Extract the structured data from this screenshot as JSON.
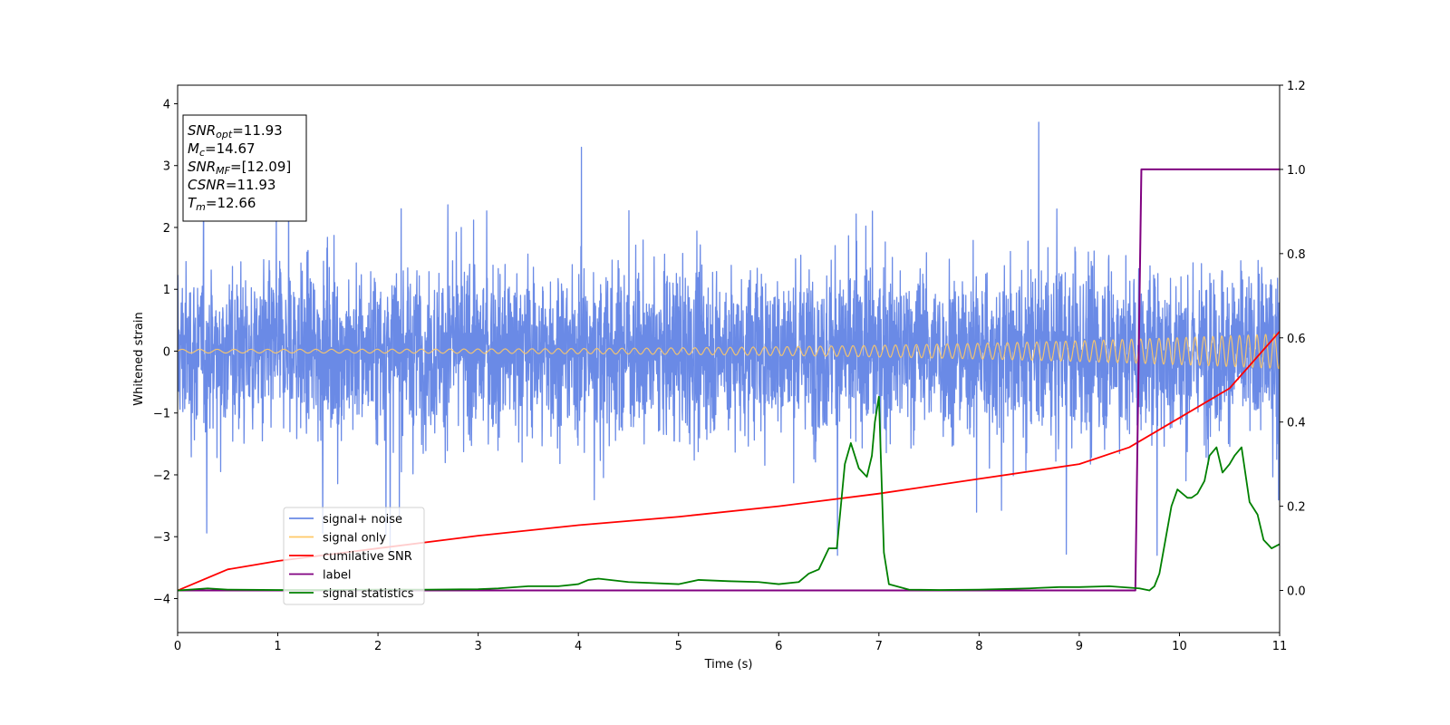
{
  "chart_data": {
    "type": "line",
    "xlabel": "Time (s)",
    "ylabel": "Whitened strain",
    "xlim": [
      0,
      11
    ],
    "ylim_left": [
      -4.55,
      4.3
    ],
    "ylim_right": [
      -0.1,
      1.2
    ],
    "x_ticks": [
      "0",
      "1",
      "2",
      "3",
      "4",
      "5",
      "6",
      "7",
      "8",
      "9",
      "10",
      "11"
    ],
    "y_left_ticks": [
      "−4",
      "−3",
      "−2",
      "−1",
      "0",
      "1",
      "2",
      "3",
      "4"
    ],
    "y_right_ticks": [
      "0.0",
      "0.2",
      "0.4",
      "0.6",
      "0.8",
      "1.0",
      "1.2"
    ],
    "grid": false,
    "legend_position": "lower-left",
    "info_box": {
      "lines": [
        {
          "sym": "SNR",
          "sub": "opt",
          "value": "=11.93"
        },
        {
          "sym": "M",
          "sub": "c",
          "value": "=14.67"
        },
        {
          "sym": "SNR",
          "sub": "MF",
          "value": "=[12.09]"
        },
        {
          "sym": "CSNR",
          "sub": "",
          "value": "=11.93"
        },
        {
          "sym": "T",
          "sub": "m",
          "value": "=12.66"
        }
      ]
    },
    "series": [
      {
        "name": "signal+ noise",
        "color": "#6a8ae6",
        "axis": "left",
        "kind": "noise",
        "amplitude_envelope": [
          -3.3,
          3.7
        ]
      },
      {
        "name": "signal only",
        "color": "#ffc966",
        "axis": "left",
        "kind": "chirp",
        "amplitude_start": 0.03,
        "amplitude_end": 0.28
      },
      {
        "name": "cumilative SNR",
        "color": "#ff0000",
        "axis": "right",
        "x": [
          0,
          0.5,
          1,
          2,
          3,
          4,
          5,
          6,
          7,
          8,
          9,
          9.5,
          10,
          10.5,
          11
        ],
        "y": [
          0.0,
          0.05,
          0.07,
          0.1,
          0.13,
          0.155,
          0.175,
          0.2,
          0.23,
          0.265,
          0.3,
          0.34,
          0.41,
          0.48,
          0.615
        ]
      },
      {
        "name": "label",
        "color": "#800080",
        "axis": "right",
        "x": [
          0,
          9.56,
          9.62,
          11
        ],
        "y": [
          0,
          0,
          1,
          1
        ]
      },
      {
        "name": "signal statistics",
        "color": "#008000",
        "axis": "right",
        "x": [
          0,
          0.3,
          0.5,
          1,
          1.5,
          2,
          2.5,
          3,
          3.2,
          3.5,
          3.8,
          4,
          4.1,
          4.2,
          4.5,
          5,
          5.2,
          5.5,
          5.8,
          6,
          6.2,
          6.3,
          6.4,
          6.5,
          6.58,
          6.66,
          6.72,
          6.8,
          6.88,
          6.93,
          6.96,
          7.0,
          7.05,
          7.1,
          7.3,
          7.6,
          8,
          8.5,
          8.8,
          9,
          9.3,
          9.6,
          9.7,
          9.75,
          9.8,
          9.86,
          9.92,
          9.98,
          10.03,
          10.08,
          10.12,
          10.18,
          10.25,
          10.3,
          10.37,
          10.43,
          10.5,
          10.55,
          10.62,
          10.7,
          10.78,
          10.84,
          10.92,
          11
        ],
        "y": [
          0.0,
          0.005,
          0.002,
          0.001,
          0.001,
          0.002,
          0.002,
          0.003,
          0.005,
          0.01,
          0.01,
          0.015,
          0.025,
          0.028,
          0.02,
          0.015,
          0.025,
          0.022,
          0.02,
          0.015,
          0.02,
          0.04,
          0.05,
          0.1,
          0.1,
          0.3,
          0.35,
          0.29,
          0.27,
          0.32,
          0.4,
          0.46,
          0.09,
          0.015,
          0.002,
          0.001,
          0.002,
          0.005,
          0.008,
          0.008,
          0.01,
          0.005,
          0.0,
          0.01,
          0.04,
          0.12,
          0.2,
          0.24,
          0.23,
          0.22,
          0.22,
          0.23,
          0.26,
          0.32,
          0.34,
          0.28,
          0.3,
          0.32,
          0.34,
          0.21,
          0.18,
          0.12,
          0.1,
          0.11
        ]
      }
    ]
  }
}
